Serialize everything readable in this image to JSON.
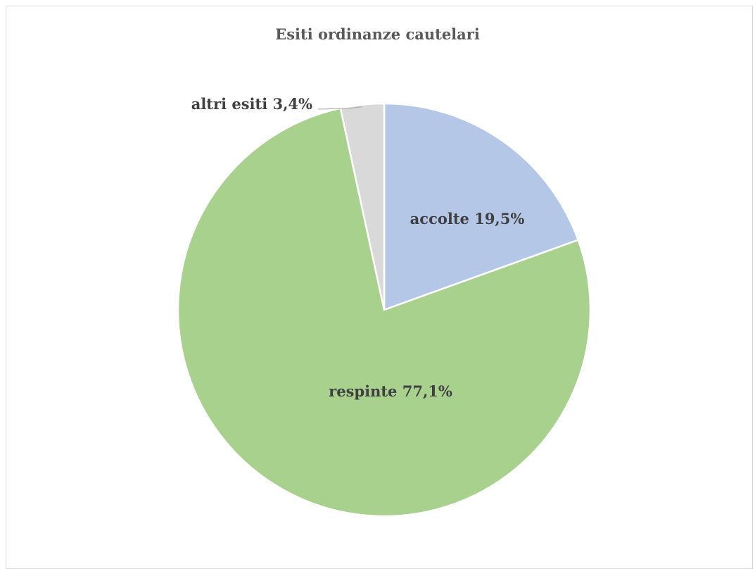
{
  "chart_data": {
    "type": "pie",
    "title": "Esiti ordinanze cautelari",
    "slices": [
      {
        "name": "accolte",
        "value": 19.5,
        "label": "accolte 19,5%",
        "color": "#b4c7e7"
      },
      {
        "name": "respinte",
        "value": 77.1,
        "label": "respinte 77,1%",
        "color": "#a9d18e"
      },
      {
        "name": "altri esiti",
        "value": 3.4,
        "label": "altri esiti 3,4%",
        "color": "#d9d9d9"
      }
    ],
    "start_angle_deg": 0,
    "direction": "clockwise",
    "legend": "none"
  }
}
